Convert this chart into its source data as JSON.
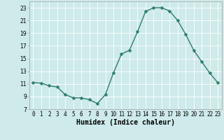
{
  "x": [
    0,
    1,
    2,
    3,
    4,
    5,
    6,
    7,
    8,
    9,
    10,
    11,
    12,
    13,
    14,
    15,
    16,
    17,
    18,
    19,
    20,
    21,
    22,
    23
  ],
  "y": [
    11.2,
    11.1,
    10.7,
    10.5,
    9.3,
    8.8,
    8.8,
    8.5,
    7.9,
    9.3,
    12.7,
    15.7,
    16.3,
    19.2,
    22.4,
    23.0,
    23.0,
    22.5,
    21.0,
    18.8,
    16.3,
    14.5,
    12.7,
    11.2
  ],
  "line_color": "#2d7d6e",
  "marker": "D",
  "marker_size": 2.5,
  "line_width": 1.0,
  "xlabel": "Humidex (Indice chaleur)",
  "xlim": [
    -0.5,
    23.5
  ],
  "ylim": [
    7,
    24
  ],
  "yticks": [
    7,
    9,
    11,
    13,
    15,
    17,
    19,
    21,
    23
  ],
  "xticks": [
    0,
    1,
    2,
    3,
    4,
    5,
    6,
    7,
    8,
    9,
    10,
    11,
    12,
    13,
    14,
    15,
    16,
    17,
    18,
    19,
    20,
    21,
    22,
    23
  ],
  "background_color": "#ceeaea",
  "grid_color": "#ffffff",
  "grid_lw": 0.6,
  "tick_fontsize": 5.5,
  "xlabel_fontsize": 7.0,
  "spine_color": "#aaaaaa"
}
